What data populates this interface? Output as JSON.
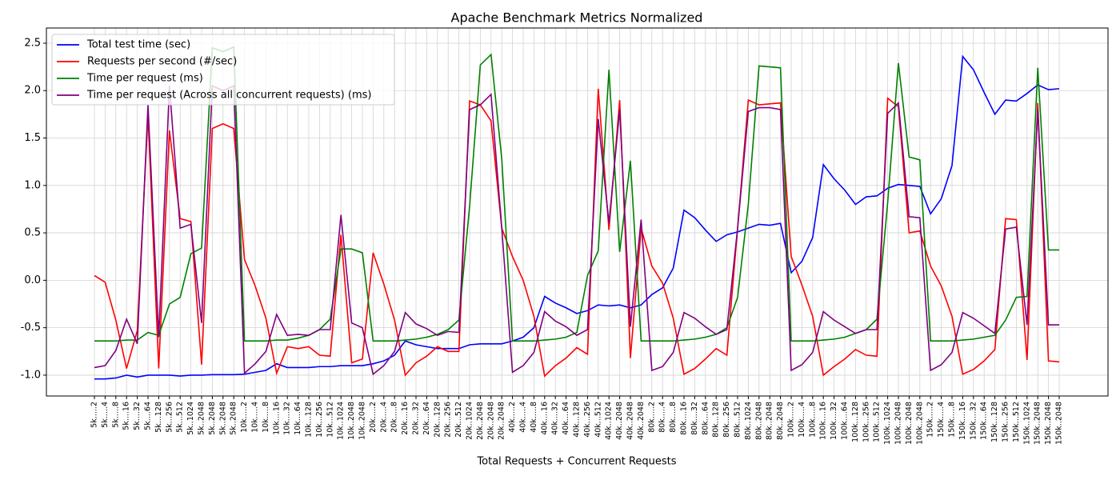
{
  "chart_data": {
    "type": "line",
    "title": "Apache Benchmark Metrics Normalized",
    "x_label": "Total Requests + Concurrent Requests",
    "categories": [
      "5k.....2",
      "5k.....4",
      "5k.....8",
      "5k....16",
      "5k....32",
      "5k....64",
      "5k...128",
      "5k...256",
      "5k...512",
      "5k..1024",
      "5k..2048",
      "5k..2048",
      "5k..2048",
      "5k..2048",
      "10k.....2",
      "10k.....4",
      "10k.....8",
      "10k....16",
      "10k....32",
      "10k....64",
      "10k...128",
      "10k...256",
      "10k...512",
      "10k..1024",
      "10k..2048",
      "10k..2048",
      "20k.....2",
      "20k.....4",
      "20k.....8",
      "20k....16",
      "20k....32",
      "20k....64",
      "20k...128",
      "20k...256",
      "20k...512",
      "20k..1024",
      "20k..2048",
      "20k..2048",
      "20k..2048",
      "40k.....2",
      "40k.....4",
      "40k.....8",
      "40k....16",
      "40k....32",
      "40k....64",
      "40k...128",
      "40k...256",
      "40k...512",
      "40k..1024",
      "40k..2048",
      "40k..2048",
      "40k..2048",
      "80k.....2",
      "80k.....4",
      "80k.....8",
      "80k....16",
      "80k....32",
      "80k....64",
      "80k...128",
      "80k...256",
      "80k...512",
      "80k..1024",
      "80k..2048",
      "80k..2048",
      "80k..2048",
      "100k.....2",
      "100k.....4",
      "100k.....8",
      "100k....16",
      "100k....32",
      "100k....64",
      "100k...128",
      "100k...256",
      "100k...512",
      "100k..1024",
      "100k..2048",
      "100k..2048",
      "100k..2048",
      "150k.....2",
      "150k.....4",
      "150k.....8",
      "150k....16",
      "150k....32",
      "150k....64",
      "150k...128",
      "150k...256",
      "150k...512",
      "150k..1024",
      "150k..2048",
      "150k..2048",
      "150k..2048"
    ],
    "series": [
      {
        "name": "Total test time (sec)",
        "color": "#0000ff",
        "values": [
          -1.04,
          -1.04,
          -1.03,
          -1.0,
          -1.02,
          -1.0,
          -1.0,
          -1.0,
          -1.01,
          -1.0,
          -1.0,
          -0.995,
          -0.995,
          -0.995,
          -0.99,
          -0.97,
          -0.95,
          -0.88,
          -0.92,
          -0.92,
          -0.92,
          -0.91,
          -0.91,
          -0.9,
          -0.9,
          -0.9,
          -0.88,
          -0.85,
          -0.79,
          -0.64,
          -0.68,
          -0.7,
          -0.72,
          -0.72,
          -0.72,
          -0.68,
          -0.67,
          -0.67,
          -0.67,
          -0.64,
          -0.6,
          -0.5,
          -0.17,
          -0.24,
          -0.29,
          -0.35,
          -0.32,
          -0.26,
          -0.27,
          -0.26,
          -0.29,
          -0.26,
          -0.15,
          -0.08,
          0.13,
          0.74,
          0.66,
          0.53,
          0.41,
          0.48,
          0.51,
          0.55,
          0.59,
          0.58,
          0.6,
          0.08,
          0.2,
          0.45,
          1.22,
          1.07,
          0.95,
          0.8,
          0.88,
          0.89,
          0.97,
          1.01,
          1.0,
          0.99,
          0.7,
          0.86,
          1.21,
          2.36,
          2.22,
          1.98,
          1.75,
          1.9,
          1.89,
          1.97,
          2.06,
          2.01,
          2.02
        ]
      },
      {
        "name": "Requests per second (#/sec)",
        "color": "#ff0000",
        "values": [
          0.05,
          -0.02,
          -0.42,
          -0.93,
          -0.53,
          1.75,
          -0.93,
          1.58,
          0.65,
          0.62,
          -0.89,
          1.6,
          1.65,
          1.6,
          0.22,
          -0.06,
          -0.4,
          -0.98,
          -0.7,
          -0.72,
          -0.7,
          -0.79,
          -0.8,
          0.48,
          -0.87,
          -0.83,
          0.29,
          -0.04,
          -0.42,
          -1.0,
          -0.87,
          -0.8,
          -0.7,
          -0.75,
          -0.75,
          1.89,
          1.85,
          1.68,
          0.55,
          0.25,
          0.0,
          -0.38,
          -1.01,
          -0.9,
          -0.82,
          -0.71,
          -0.78,
          2.02,
          0.53,
          1.9,
          -0.82,
          0.55,
          0.15,
          -0.03,
          -0.4,
          -0.99,
          -0.93,
          -0.83,
          -0.72,
          -0.79,
          0.55,
          1.9,
          1.85,
          1.86,
          1.87,
          0.25,
          -0.05,
          -0.38,
          -1.0,
          -0.91,
          -0.83,
          -0.73,
          -0.79,
          -0.8,
          1.92,
          1.83,
          0.5,
          0.52,
          0.15,
          -0.06,
          -0.38,
          -0.99,
          -0.94,
          -0.85,
          -0.73,
          0.65,
          0.64,
          -0.84,
          1.87,
          -0.85,
          -0.86
        ]
      },
      {
        "name": "Time per request (ms)",
        "color": "#008000",
        "values": [
          -0.64,
          -0.64,
          -0.64,
          -0.63,
          -0.63,
          -0.55,
          -0.58,
          -0.25,
          -0.18,
          0.28,
          0.34,
          2.45,
          2.41,
          2.46,
          -0.64,
          -0.64,
          -0.64,
          -0.63,
          -0.63,
          -0.61,
          -0.58,
          -0.52,
          -0.41,
          0.33,
          0.33,
          0.29,
          -0.64,
          -0.64,
          -0.64,
          -0.63,
          -0.62,
          -0.6,
          -0.57,
          -0.52,
          -0.42,
          0.78,
          2.27,
          2.38,
          1.28,
          -0.64,
          -0.64,
          -0.64,
          -0.63,
          -0.62,
          -0.6,
          -0.55,
          0.05,
          0.31,
          2.22,
          0.3,
          1.26,
          -0.64,
          -0.64,
          -0.64,
          -0.64,
          -0.63,
          -0.62,
          -0.6,
          -0.57,
          -0.5,
          -0.18,
          0.8,
          2.26,
          2.25,
          2.24,
          -0.64,
          -0.64,
          -0.64,
          -0.63,
          -0.62,
          -0.6,
          -0.56,
          -0.52,
          -0.41,
          0.82,
          2.29,
          1.3,
          1.27,
          -0.64,
          -0.64,
          -0.64,
          -0.63,
          -0.62,
          -0.6,
          -0.58,
          -0.42,
          -0.18,
          -0.17,
          2.24,
          0.32,
          0.32
        ]
      },
      {
        "name": "Time per request (Across all concurrent requests) (ms)",
        "color": "#800080",
        "values": [
          -0.92,
          -0.9,
          -0.74,
          -0.41,
          -0.67,
          1.85,
          -0.6,
          2.05,
          0.55,
          0.59,
          -0.45,
          2.05,
          2.0,
          2.05,
          -0.98,
          -0.88,
          -0.75,
          -0.36,
          -0.58,
          -0.57,
          -0.58,
          -0.52,
          -0.52,
          0.69,
          -0.45,
          -0.5,
          -0.99,
          -0.9,
          -0.75,
          -0.34,
          -0.46,
          -0.51,
          -0.58,
          -0.54,
          -0.55,
          1.8,
          1.85,
          1.96,
          0.55,
          -0.97,
          -0.9,
          -0.76,
          -0.33,
          -0.43,
          -0.49,
          -0.58,
          -0.52,
          1.7,
          0.6,
          1.8,
          -0.49,
          0.64,
          -0.95,
          -0.91,
          -0.76,
          -0.34,
          -0.4,
          -0.49,
          -0.57,
          -0.52,
          0.55,
          1.78,
          1.82,
          1.82,
          1.8,
          -0.95,
          -0.89,
          -0.76,
          -0.33,
          -0.42,
          -0.49,
          -0.56,
          -0.52,
          -0.52,
          1.76,
          1.87,
          0.67,
          0.66,
          -0.95,
          -0.89,
          -0.76,
          -0.34,
          -0.4,
          -0.48,
          -0.56,
          0.54,
          0.56,
          -0.47,
          1.8,
          -0.47,
          -0.47
        ]
      }
    ],
    "ylim": [
      -1.22,
      2.66
    ],
    "yticks": [
      {
        "value": -1.0,
        "label": "-1.0"
      },
      {
        "value": -0.5,
        "label": "-0.5"
      },
      {
        "value": 0.0,
        "label": "0.0"
      },
      {
        "value": 0.5,
        "label": "0.5"
      },
      {
        "value": 1.0,
        "label": "1.0"
      },
      {
        "value": 1.5,
        "label": "1.5"
      },
      {
        "value": 2.0,
        "label": "2.0"
      },
      {
        "value": 2.5,
        "label": "2.5"
      }
    ],
    "grid": true,
    "legend": "upper-left"
  }
}
